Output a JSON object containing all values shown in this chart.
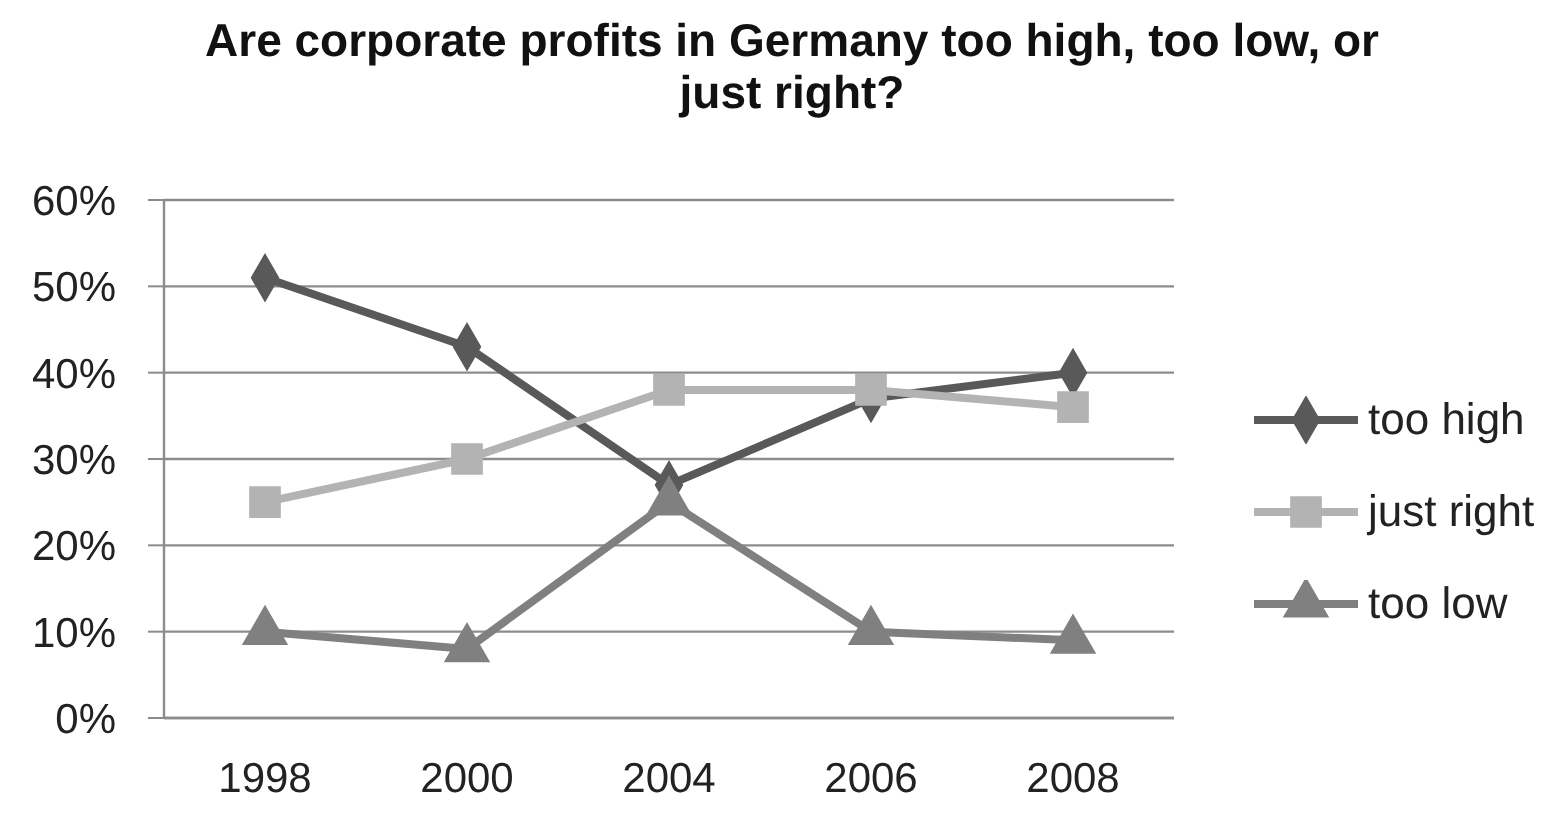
{
  "chart_data": {
    "type": "line",
    "title": "Are corporate profits in Germany too high, too low, or just right?",
    "categories": [
      "1998",
      "2000",
      "2004",
      "2006",
      "2008"
    ],
    "series": [
      {
        "name": "too high",
        "color": "#595959",
        "marker": "diamond",
        "values": [
          51,
          43,
          27,
          37,
          40
        ]
      },
      {
        "name": "just right",
        "color": "#b3b3b3",
        "marker": "square",
        "values": [
          25,
          30,
          38,
          38,
          36
        ]
      },
      {
        "name": "too low",
        "color": "#808080",
        "marker": "triangle",
        "values": [
          10,
          8,
          25,
          10,
          9
        ]
      }
    ],
    "ylim": [
      0,
      60
    ],
    "yticks": [
      {
        "value": 0,
        "label": "0%"
      },
      {
        "value": 10,
        "label": "10%"
      },
      {
        "value": 20,
        "label": "20%"
      },
      {
        "value": 30,
        "label": "30%"
      },
      {
        "value": 40,
        "label": "40%"
      },
      {
        "value": 50,
        "label": "50%"
      },
      {
        "value": 60,
        "label": "60%"
      }
    ],
    "grid": "y",
    "legend": "right"
  }
}
